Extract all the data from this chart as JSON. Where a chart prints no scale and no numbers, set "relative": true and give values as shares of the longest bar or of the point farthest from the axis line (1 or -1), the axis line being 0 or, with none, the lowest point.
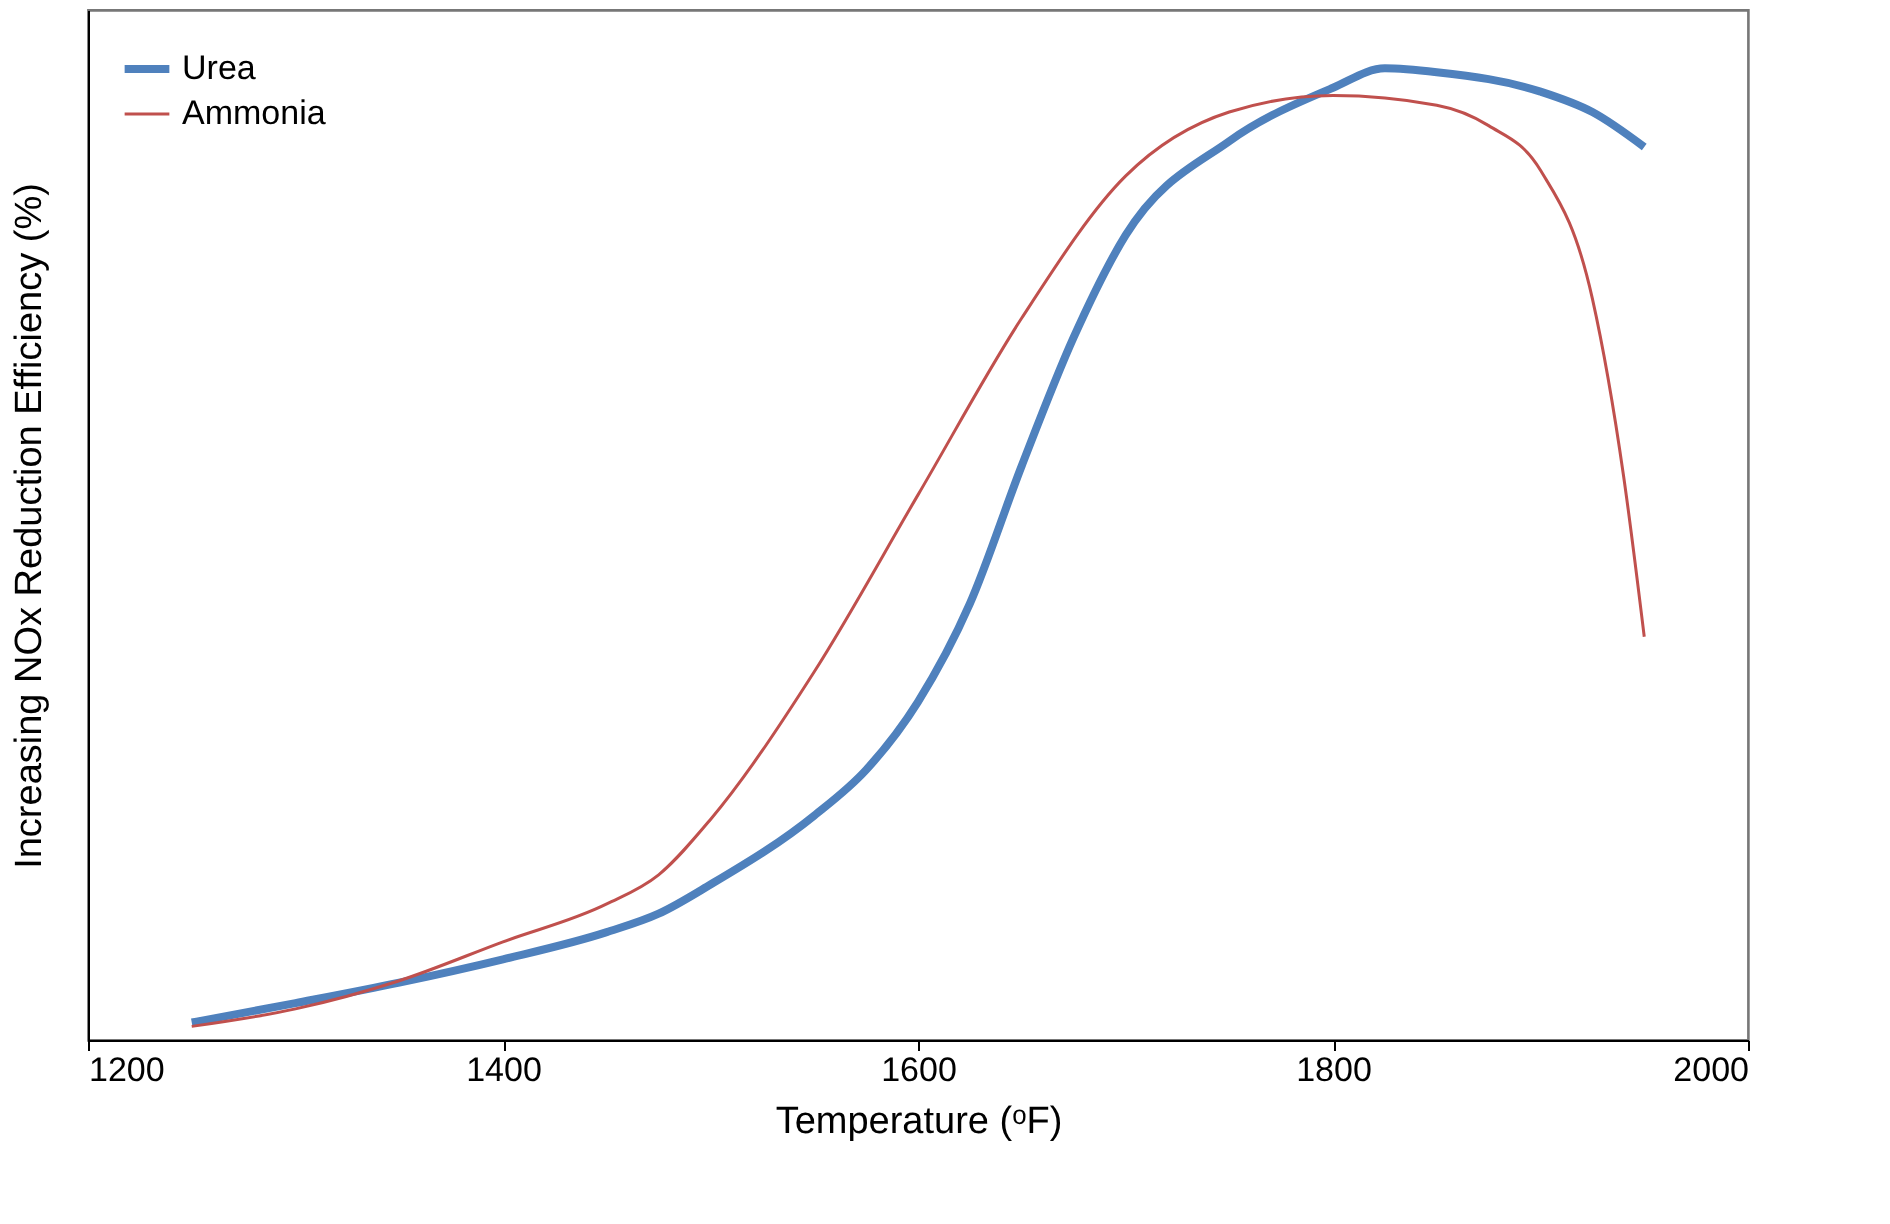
{
  "chart_data": {
    "type": "line",
    "xlabel": "Temperature (ᵒF)",
    "ylabel": "Increasing NOx Reduction Efficiency (%)",
    "relative": true,
    "xlim": [
      1200,
      2000
    ],
    "xticks": [
      1200,
      1400,
      1600,
      1800,
      2000
    ],
    "grid": false,
    "legend": "top left",
    "marker": "none",
    "line_style": "solid",
    "series": [
      {
        "name": "Urea",
        "color": "#4f81bd",
        "x": [
          1250,
          1300,
          1350,
          1400,
          1450,
          1475,
          1500,
          1550,
          1575,
          1600,
          1625,
          1650,
          1675,
          1700,
          1750,
          1800,
          1825,
          1850,
          1900,
          1925,
          1950
        ],
        "values": [
          0.018,
          0.038,
          0.059,
          0.083,
          0.111,
          0.13,
          0.16,
          0.231,
          0.278,
          0.348,
          0.449,
          0.591,
          0.723,
          0.828,
          0.925,
          0.98,
          1.0,
          0.996,
          0.976,
          0.955,
          0.919
        ]
      },
      {
        "name": "Ammonia",
        "color": "#c0504d",
        "x": [
          1250,
          1300,
          1350,
          1400,
          1450,
          1475,
          1500,
          1550,
          1600,
          1650,
          1700,
          1750,
          1800,
          1850,
          1875,
          1900,
          1925,
          1940,
          1950
        ],
        "values": [
          0.014,
          0.032,
          0.061,
          0.101,
          0.14,
          0.17,
          0.227,
          0.379,
          0.561,
          0.743,
          0.889,
          0.955,
          0.972,
          0.962,
          0.941,
          0.895,
          0.763,
          0.581,
          0.415
        ]
      }
    ]
  }
}
